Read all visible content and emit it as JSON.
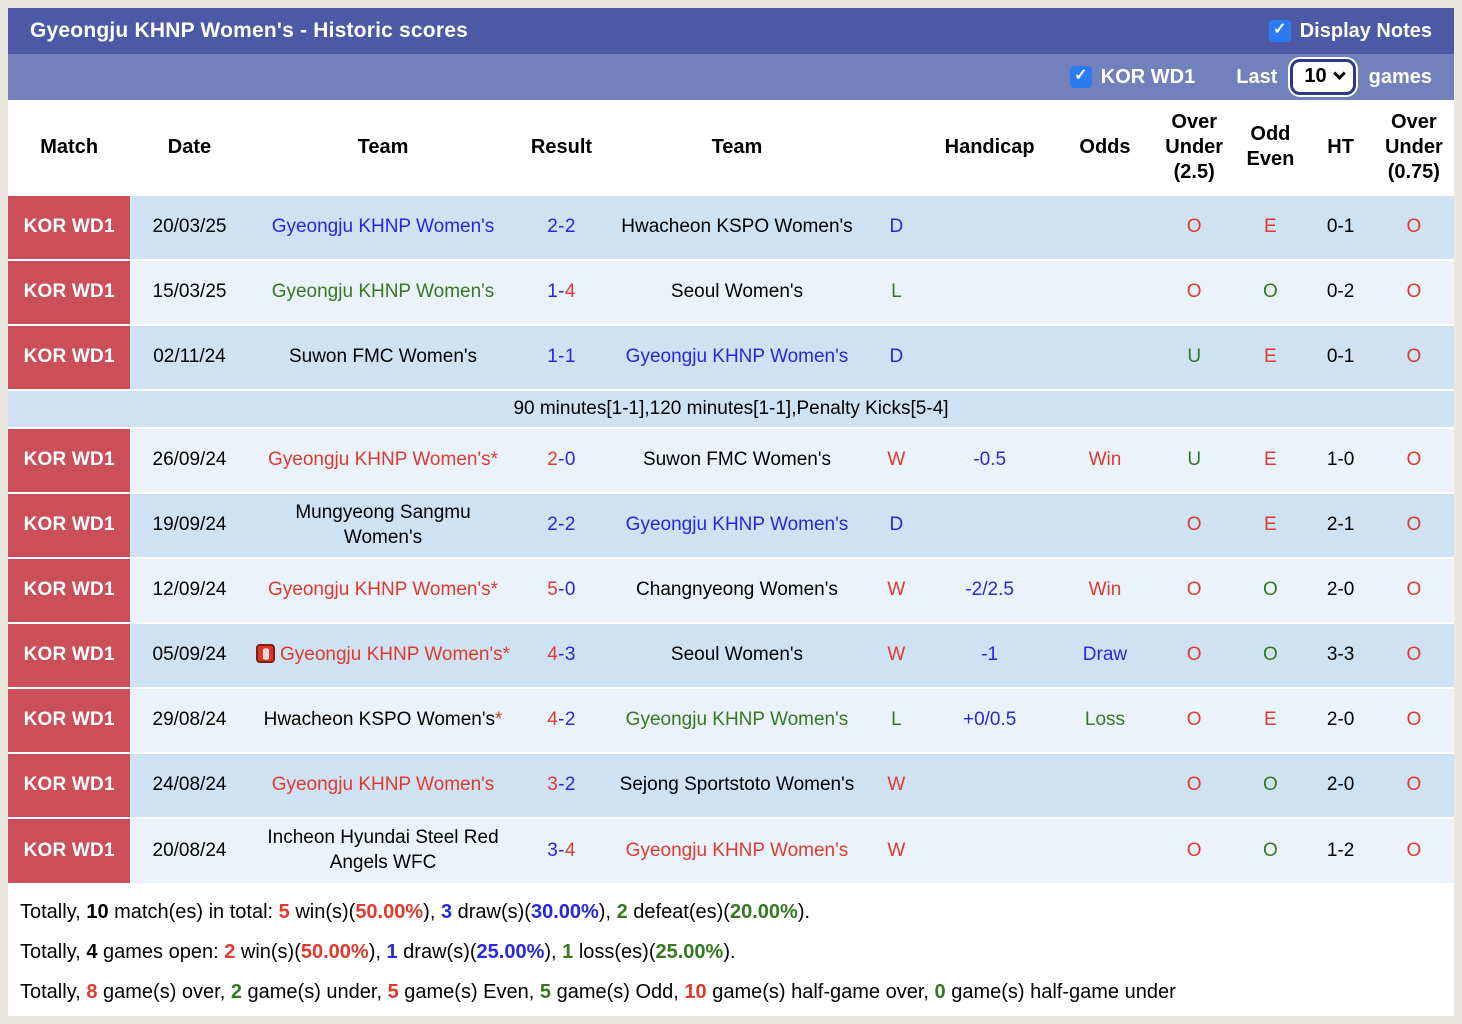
{
  "header": {
    "title": "Gyeongju KHNP Women's - Historic scores",
    "display_notes_label": "Display Notes"
  },
  "filter": {
    "league_label": "KOR WD1",
    "last_label": "Last",
    "games_count": "10",
    "games_label": "games"
  },
  "colors": {
    "red": "#e03a2c",
    "blue": "#2727dd",
    "green": "#35791f",
    "badge": "#cb4f58",
    "bar_dark": "#4c59a4",
    "bar_light": "#7280bb",
    "row_dark": "#cfe2f3",
    "row_light": "#eaf3fb",
    "checkbox": "#2b7cf0",
    "page_bg": "#eae7e1"
  },
  "table": {
    "columns": [
      "Match",
      "Date",
      "Team",
      "Result",
      "Team",
      "",
      "Handicap",
      "Odds",
      "Over Under (2.5)",
      "Odd Even",
      "HT",
      "Over Under (0.75)"
    ],
    "rows": [
      {
        "match": "KOR WD1",
        "date": "20/03/25",
        "shade": "dark",
        "home": {
          "text": "Gyeongju KHNP Women's",
          "color": "blue",
          "star": false,
          "icon": false
        },
        "result": {
          "home": "2",
          "away": "2",
          "home_color": "blue",
          "away_color": "blue"
        },
        "away": {
          "text": "Hwacheon KSPO Women's",
          "color": "black",
          "star": false
        },
        "outcome": {
          "text": "D",
          "color": "blue"
        },
        "handicap": "",
        "odds": {
          "text": "",
          "color": ""
        },
        "ou25": {
          "text": "O",
          "color": "red"
        },
        "oddeven": {
          "text": "E",
          "color": "red"
        },
        "ht": "0-1",
        "ou075": {
          "text": "O",
          "color": "red"
        }
      },
      {
        "match": "KOR WD1",
        "date": "15/03/25",
        "shade": "light",
        "home": {
          "text": "Gyeongju KHNP Women's",
          "color": "green",
          "star": false,
          "icon": false
        },
        "result": {
          "home": "1",
          "away": "4",
          "home_color": "blue",
          "away_color": "red"
        },
        "away": {
          "text": "Seoul Women's",
          "color": "black",
          "star": false
        },
        "outcome": {
          "text": "L",
          "color": "green"
        },
        "handicap": "",
        "odds": {
          "text": "",
          "color": ""
        },
        "ou25": {
          "text": "O",
          "color": "red"
        },
        "oddeven": {
          "text": "O",
          "color": "green"
        },
        "ht": "0-2",
        "ou075": {
          "text": "O",
          "color": "red"
        }
      },
      {
        "match": "KOR WD1",
        "date": "02/11/24",
        "shade": "dark",
        "home": {
          "text": "Suwon FMC Women's",
          "color": "black",
          "star": false,
          "icon": false
        },
        "result": {
          "home": "1",
          "away": "1",
          "home_color": "blue",
          "away_color": "blue"
        },
        "away": {
          "text": "Gyeongju KHNP Women's",
          "color": "blue",
          "star": false
        },
        "outcome": {
          "text": "D",
          "color": "blue"
        },
        "handicap": "",
        "odds": {
          "text": "",
          "color": ""
        },
        "ou25": {
          "text": "U",
          "color": "green"
        },
        "oddeven": {
          "text": "E",
          "color": "red"
        },
        "ht": "0-1",
        "ou075": {
          "text": "O",
          "color": "red"
        },
        "note": "90 minutes[1-1],120 minutes[1-1],Penalty Kicks[5-4]"
      },
      {
        "match": "KOR WD1",
        "date": "26/09/24",
        "shade": "light",
        "home": {
          "text": "Gyeongju KHNP Women's",
          "color": "red",
          "star": true,
          "icon": false
        },
        "result": {
          "home": "2",
          "away": "0",
          "home_color": "red",
          "away_color": "blue"
        },
        "away": {
          "text": "Suwon FMC Women's",
          "color": "black",
          "star": false
        },
        "outcome": {
          "text": "W",
          "color": "red"
        },
        "handicap": "-0.5",
        "odds": {
          "text": "Win",
          "color": "red"
        },
        "ou25": {
          "text": "U",
          "color": "green"
        },
        "oddeven": {
          "text": "E",
          "color": "red"
        },
        "ht": "1-0",
        "ou075": {
          "text": "O",
          "color": "red"
        }
      },
      {
        "match": "KOR WD1",
        "date": "19/09/24",
        "shade": "dark",
        "home": {
          "text": "Mungyeong Sangmu Women's",
          "color": "black",
          "star": false,
          "icon": false
        },
        "result": {
          "home": "2",
          "away": "2",
          "home_color": "blue",
          "away_color": "blue"
        },
        "away": {
          "text": "Gyeongju KHNP Women's",
          "color": "blue",
          "star": false
        },
        "outcome": {
          "text": "D",
          "color": "blue"
        },
        "handicap": "",
        "odds": {
          "text": "",
          "color": ""
        },
        "ou25": {
          "text": "O",
          "color": "red"
        },
        "oddeven": {
          "text": "E",
          "color": "red"
        },
        "ht": "2-1",
        "ou075": {
          "text": "O",
          "color": "red"
        }
      },
      {
        "match": "KOR WD1",
        "date": "12/09/24",
        "shade": "light",
        "home": {
          "text": "Gyeongju KHNP Women's",
          "color": "red",
          "star": true,
          "icon": false
        },
        "result": {
          "home": "5",
          "away": "0",
          "home_color": "red",
          "away_color": "blue"
        },
        "away": {
          "text": "Changnyeong Women's",
          "color": "black",
          "star": false
        },
        "outcome": {
          "text": "W",
          "color": "red"
        },
        "handicap": "-2/2.5",
        "odds": {
          "text": "Win",
          "color": "red"
        },
        "ou25": {
          "text": "O",
          "color": "red"
        },
        "oddeven": {
          "text": "O",
          "color": "green"
        },
        "ht": "2-0",
        "ou075": {
          "text": "O",
          "color": "red"
        }
      },
      {
        "match": "KOR WD1",
        "date": "05/09/24",
        "shade": "dark",
        "home": {
          "text": "Gyeongju KHNP Women's",
          "color": "red",
          "star": true,
          "icon": true
        },
        "result": {
          "home": "4",
          "away": "3",
          "home_color": "red",
          "away_color": "blue"
        },
        "away": {
          "text": "Seoul Women's",
          "color": "black",
          "star": false
        },
        "outcome": {
          "text": "W",
          "color": "red"
        },
        "handicap": "-1",
        "odds": {
          "text": "Draw",
          "color": "blue"
        },
        "ou25": {
          "text": "O",
          "color": "red"
        },
        "oddeven": {
          "text": "O",
          "color": "green"
        },
        "ht": "3-3",
        "ou075": {
          "text": "O",
          "color": "red"
        }
      },
      {
        "match": "KOR WD1",
        "date": "29/08/24",
        "shade": "light",
        "home": {
          "text": "Hwacheon KSPO Women's",
          "color": "black",
          "star": true,
          "icon": false
        },
        "result": {
          "home": "4",
          "away": "2",
          "home_color": "red",
          "away_color": "blue"
        },
        "away": {
          "text": "Gyeongju KHNP Women's",
          "color": "green",
          "star": false
        },
        "outcome": {
          "text": "L",
          "color": "green"
        },
        "handicap": "+0/0.5",
        "odds": {
          "text": "Loss",
          "color": "green"
        },
        "ou25": {
          "text": "O",
          "color": "red"
        },
        "oddeven": {
          "text": "E",
          "color": "red"
        },
        "ht": "2-0",
        "ou075": {
          "text": "O",
          "color": "red"
        }
      },
      {
        "match": "KOR WD1",
        "date": "24/08/24",
        "shade": "dark",
        "home": {
          "text": "Gyeongju KHNP Women's",
          "color": "red",
          "star": false,
          "icon": false
        },
        "result": {
          "home": "3",
          "away": "2",
          "home_color": "red",
          "away_color": "blue"
        },
        "away": {
          "text": "Sejong Sportstoto Women's",
          "color": "black",
          "star": false
        },
        "outcome": {
          "text": "W",
          "color": "red"
        },
        "handicap": "",
        "odds": {
          "text": "",
          "color": ""
        },
        "ou25": {
          "text": "O",
          "color": "red"
        },
        "oddeven": {
          "text": "O",
          "color": "green"
        },
        "ht": "2-0",
        "ou075": {
          "text": "O",
          "color": "red"
        }
      },
      {
        "match": "KOR WD1",
        "date": "20/08/24",
        "shade": "light",
        "home": {
          "text": "Incheon Hyundai Steel Red Angels WFC",
          "color": "black",
          "star": false,
          "icon": false
        },
        "result": {
          "home": "3",
          "away": "4",
          "home_color": "blue",
          "away_color": "red"
        },
        "away": {
          "text": "Gyeongju KHNP Women's",
          "color": "red",
          "star": false
        },
        "outcome": {
          "text": "W",
          "color": "red"
        },
        "handicap": "",
        "odds": {
          "text": "",
          "color": ""
        },
        "ou25": {
          "text": "O",
          "color": "red"
        },
        "oddeven": {
          "text": "O",
          "color": "green"
        },
        "ht": "1-2",
        "ou075": {
          "text": "O",
          "color": "red"
        }
      }
    ]
  },
  "summary": [
    [
      {
        "t": "Totally, "
      },
      {
        "t": "10",
        "b": 1
      },
      {
        "t": " match(es) in total: "
      },
      {
        "t": "5",
        "b": 1,
        "c": "red"
      },
      {
        "t": " win(s)("
      },
      {
        "t": "50.00%",
        "b": 1,
        "c": "red"
      },
      {
        "t": "), "
      },
      {
        "t": "3",
        "b": 1,
        "c": "blue"
      },
      {
        "t": " draw(s)("
      },
      {
        "t": "30.00%",
        "b": 1,
        "c": "blue"
      },
      {
        "t": "), "
      },
      {
        "t": "2",
        "b": 1,
        "c": "green"
      },
      {
        "t": " defeat(es)("
      },
      {
        "t": "20.00%",
        "b": 1,
        "c": "green"
      },
      {
        "t": ")."
      }
    ],
    [
      {
        "t": "Totally, "
      },
      {
        "t": "4",
        "b": 1
      },
      {
        "t": " games open: "
      },
      {
        "t": "2",
        "b": 1,
        "c": "red"
      },
      {
        "t": " win(s)("
      },
      {
        "t": "50.00%",
        "b": 1,
        "c": "red"
      },
      {
        "t": "), "
      },
      {
        "t": "1",
        "b": 1,
        "c": "blue"
      },
      {
        "t": " draw(s)("
      },
      {
        "t": "25.00%",
        "b": 1,
        "c": "blue"
      },
      {
        "t": "), "
      },
      {
        "t": "1",
        "b": 1,
        "c": "green"
      },
      {
        "t": " loss(es)("
      },
      {
        "t": "25.00%",
        "b": 1,
        "c": "green"
      },
      {
        "t": ")."
      }
    ],
    [
      {
        "t": "Totally, "
      },
      {
        "t": "8",
        "b": 1,
        "c": "red"
      },
      {
        "t": " game(s) over, "
      },
      {
        "t": "2",
        "b": 1,
        "c": "green"
      },
      {
        "t": " game(s) under, "
      },
      {
        "t": "5",
        "b": 1,
        "c": "red"
      },
      {
        "t": " game(s) Even, "
      },
      {
        "t": "5",
        "b": 1,
        "c": "green"
      },
      {
        "t": " game(s) Odd, "
      },
      {
        "t": "10",
        "b": 1,
        "c": "red"
      },
      {
        "t": " game(s) half-game over, "
      },
      {
        "t": "0",
        "b": 1,
        "c": "green"
      },
      {
        "t": " game(s) half-game under"
      }
    ]
  ]
}
